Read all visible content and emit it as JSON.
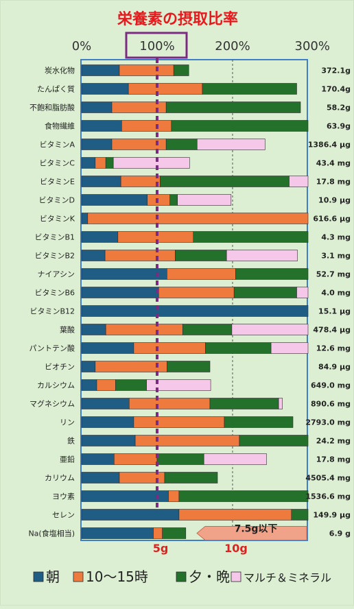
{
  "chart_data": {
    "type": "bar",
    "stacked": true,
    "orientation": "horizontal",
    "title": "栄養素の摂取比率",
    "x_tick_labels": [
      "0%",
      "100%",
      "200%",
      "300%"
    ],
    "xlim": [
      0,
      300
    ],
    "grid": "vertical dashed",
    "legend_position": "bottom",
    "series": [
      {
        "name": "朝",
        "color": "#1f5d84"
      },
      {
        "name": "10～15時",
        "color": "#ef7a3e"
      },
      {
        "name": "夕・晩",
        "color": "#23712a"
      },
      {
        "name": "マルチ＆ミネラル",
        "color": "#f5c8ea"
      }
    ],
    "rows": [
      {
        "label": "炭水化物",
        "value": "372.1g",
        "parts": [
          50,
          72,
          20,
          0
        ]
      },
      {
        "label": "たんぱく質",
        "value": "170.4g",
        "parts": [
          62,
          98,
          125,
          0
        ]
      },
      {
        "label": "不飽和脂肪酸",
        "value": "58.2g",
        "parts": [
          40,
          72,
          178,
          0
        ]
      },
      {
        "label": "食物繊維",
        "value": "63.9g",
        "parts": [
          53,
          66,
          181,
          0
        ]
      },
      {
        "label": "ビタミンA",
        "value": "1386.4 μg",
        "parts": [
          40,
          72,
          41,
          90
        ]
      },
      {
        "label": "ビタミンC",
        "value": "43.4 mg",
        "parts": [
          18,
          14,
          10,
          101
        ]
      },
      {
        "label": "ビタミンE",
        "value": "17.8 mg",
        "parts": [
          52,
          52,
          171,
          25
        ]
      },
      {
        "label": "ビタミンD",
        "value": "10.9 μg",
        "parts": [
          87,
          30,
          10,
          71
        ]
      },
      {
        "label": "ビタミンK",
        "value": "616.6 μg",
        "parts": [
          8,
          292,
          0,
          0
        ]
      },
      {
        "label": "ビタミンB1",
        "value": "4.3 mg",
        "parts": [
          48,
          100,
          152,
          0
        ]
      },
      {
        "label": "ビタミンB2",
        "value": "3.1 mg",
        "parts": [
          31,
          93,
          68,
          94
        ]
      },
      {
        "label": "ナイアシン",
        "value": "52.7 mg",
        "parts": [
          113,
          91,
          96,
          0
        ]
      },
      {
        "label": "ビタミンB6",
        "value": "4.0 mg",
        "parts": [
          102,
          100,
          83,
          15
        ]
      },
      {
        "label": "ビタミンB12",
        "value": "15.1 μg",
        "parts": [
          300,
          0,
          0,
          0
        ]
      },
      {
        "label": "葉酸",
        "value": "478.4 μg",
        "parts": [
          32,
          102,
          65,
          101
        ]
      },
      {
        "label": "パントテン酸",
        "value": "12.6 mg",
        "parts": [
          69,
          95,
          87,
          49
        ]
      },
      {
        "label": "ビオチン",
        "value": "84.9 μg",
        "parts": [
          18,
          95,
          57,
          0
        ]
      },
      {
        "label": "カルシウム",
        "value": "649.0 mg",
        "parts": [
          20,
          25,
          41,
          85
        ]
      },
      {
        "label": "マグネシウム",
        "value": "890.6 mg",
        "parts": [
          63,
          107,
          91,
          5
        ]
      },
      {
        "label": "リン",
        "value": "2793.0 mg",
        "parts": [
          69,
          120,
          91,
          0
        ]
      },
      {
        "label": "鉄",
        "value": "24.2 mg",
        "parts": [
          71,
          138,
          91,
          0
        ]
      },
      {
        "label": "亜鉛",
        "value": "17.8 mg",
        "parts": [
          43,
          57,
          62,
          83
        ]
      },
      {
        "label": "カリウム",
        "value": "4505.4 mg",
        "parts": [
          50,
          60,
          70,
          0
        ]
      },
      {
        "label": "ヨウ素",
        "value": "1536.6 mg",
        "parts": [
          115,
          14,
          171,
          0
        ]
      },
      {
        "label": "セレン",
        "value": "149.9 μg",
        "parts": [
          129,
          149,
          22,
          0
        ]
      },
      {
        "label": "Na(食塩相当)",
        "value": "6.9 g",
        "parts": [
          95,
          12,
          31,
          0
        ],
        "salt_row": true
      }
    ],
    "salt_axis_labels": [
      {
        "text": "5g",
        "at": 100
      },
      {
        "text": "10g",
        "at": 200
      }
    ],
    "salt_limit_label": "7.5g以下"
  }
}
